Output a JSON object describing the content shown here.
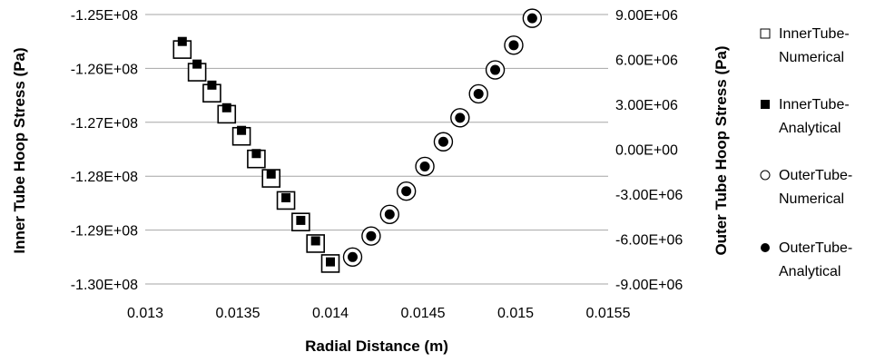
{
  "chart_data": {
    "type": "scatter",
    "title": "",
    "xlabel": "Radial Distance (m)",
    "ylabel": "Inner Tube Hoop Stress (Pa)",
    "y2label": "Outer Tube Hoop Stress (Pa)",
    "xlim": [
      0.013,
      0.0155
    ],
    "ylim": [
      -130000000,
      -125000000
    ],
    "y2lim": [
      -9000000,
      9000000
    ],
    "x_ticks": [
      "0.013",
      "0.0135",
      "0.014",
      "0.0145",
      "0.015",
      "0.0155"
    ],
    "y_ticks": [
      "-1.25E+08",
      "-1.26E+08",
      "-1.27E+08",
      "-1.28E+08",
      "-1.29E+08",
      "-1.30E+08"
    ],
    "y2_ticks": [
      "9.00E+06",
      "6.00E+06",
      "3.00E+06",
      "0.00E+00",
      "-3.00E+06",
      "-6.00E+06",
      "-9.00E+06"
    ],
    "grid": "horizontal",
    "legend_position": "right",
    "series": [
      {
        "name": "InnerTube-Numerical",
        "legend_lines": [
          "InnerTube-",
          "Numerical"
        ],
        "axis": "left",
        "marker": "open-square",
        "points": [
          [
            0.0132,
            -125650000
          ],
          [
            0.01328,
            -126070000
          ],
          [
            0.01336,
            -126460000
          ],
          [
            0.01344,
            -126850000
          ],
          [
            0.01352,
            -127260000
          ],
          [
            0.0136,
            -127680000
          ],
          [
            0.01368,
            -128040000
          ],
          [
            0.01376,
            -128450000
          ],
          [
            0.01384,
            -128850000
          ],
          [
            0.01392,
            -129250000
          ],
          [
            0.014,
            -129620000
          ]
        ]
      },
      {
        "name": "InnerTube-Analytical",
        "legend_lines": [
          "InnerTube-",
          "Analytical"
        ],
        "axis": "left",
        "marker": "filled-square",
        "points": [
          [
            0.0132,
            -125500000
          ],
          [
            0.01328,
            -125920000
          ],
          [
            0.01336,
            -126310000
          ],
          [
            0.01344,
            -126730000
          ],
          [
            0.01352,
            -127150000
          ],
          [
            0.0136,
            -127580000
          ],
          [
            0.01368,
            -127960000
          ],
          [
            0.01376,
            -128400000
          ],
          [
            0.01384,
            -128820000
          ],
          [
            0.01392,
            -129200000
          ],
          [
            0.014,
            -129590000
          ]
        ]
      },
      {
        "name": "OuterTube-Numerical",
        "legend_lines": [
          "OuterTube-",
          "Numerical"
        ],
        "axis": "right",
        "marker": "open-circle",
        "points": [
          [
            0.01412,
            -7200000
          ],
          [
            0.01422,
            -5800000
          ],
          [
            0.01432,
            -4350000
          ],
          [
            0.01441,
            -2800000
          ],
          [
            0.01451,
            -1150000
          ],
          [
            0.01461,
            500000
          ],
          [
            0.0147,
            2100000
          ],
          [
            0.0148,
            3700000
          ],
          [
            0.01489,
            5300000
          ],
          [
            0.01499,
            6950000
          ],
          [
            0.01509,
            8750000
          ]
        ]
      },
      {
        "name": "OuterTube-Analytical",
        "legend_lines": [
          "OuterTube-",
          "Analytical"
        ],
        "axis": "right",
        "marker": "filled-circle",
        "points": [
          [
            0.01412,
            -7200000
          ],
          [
            0.01422,
            -5800000
          ],
          [
            0.01432,
            -4350000
          ],
          [
            0.01441,
            -2800000
          ],
          [
            0.01451,
            -1150000
          ],
          [
            0.01461,
            500000
          ],
          [
            0.0147,
            2100000
          ],
          [
            0.0148,
            3700000
          ],
          [
            0.01489,
            5300000
          ],
          [
            0.01499,
            6950000
          ],
          [
            0.01509,
            8750000
          ]
        ]
      }
    ]
  }
}
